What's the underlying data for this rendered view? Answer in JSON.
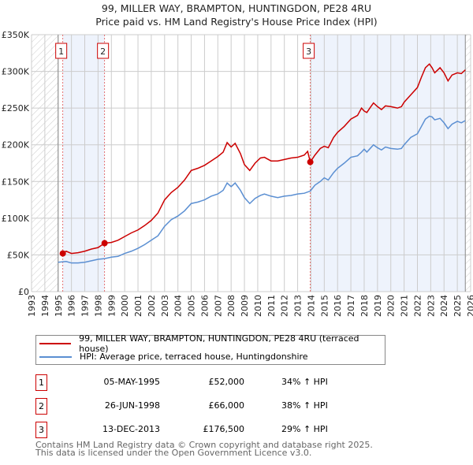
{
  "chart_data": {
    "type": "line",
    "title": "99, MILLER WAY, BRAMPTON, HUNTINGDON, PE28 4RU",
    "subtitle": "Price paid vs. HM Land Registry's House Price Index (HPI)",
    "xlim": [
      1993,
      2026
    ],
    "ylim": [
      0,
      350000
    ],
    "x_ticks": [
      "1993",
      "1994",
      "1995",
      "1996",
      "1997",
      "1998",
      "1999",
      "2000",
      "2001",
      "2002",
      "2003",
      "2004",
      "2005",
      "2006",
      "2007",
      "2008",
      "2009",
      "2010",
      "2011",
      "2012",
      "2013",
      "2014",
      "2015",
      "2016",
      "2017",
      "2018",
      "2019",
      "2020",
      "2021",
      "2022",
      "2023",
      "2024",
      "2025",
      "2026"
    ],
    "y_ticks": [
      {
        "v": 0,
        "label": "£0"
      },
      {
        "v": 50000,
        "label": "£50K"
      },
      {
        "v": 100000,
        "label": "£100K"
      },
      {
        "v": 150000,
        "label": "£150K"
      },
      {
        "v": 200000,
        "label": "£200K"
      },
      {
        "v": 250000,
        "label": "£250K"
      },
      {
        "v": 300000,
        "label": "£300K"
      },
      {
        "v": 350000,
        "label": "£350K"
      }
    ],
    "grid": true,
    "series": [
      {
        "name": "99, MILLER WAY, BRAMPTON, HUNTINGDON, PE28 4RU (terraced house)",
        "color": "#cc0000",
        "x": [
          1995.35,
          1995.6,
          1996,
          1996.5,
          1997,
          1997.5,
          1998,
          1998.49,
          1999,
          1999.5,
          2000,
          2000.5,
          2001,
          2001.5,
          2002,
          2002.5,
          2003,
          2003.5,
          2004,
          2004.5,
          2005,
          2005.5,
          2006,
          2006.5,
          2007,
          2007.4,
          2007.7,
          2008,
          2008.3,
          2008.7,
          2009,
          2009.4,
          2009.8,
          2010.2,
          2010.5,
          2011,
          2011.5,
          2012,
          2012.5,
          2013,
          2013.5,
          2013.75,
          2013.95,
          2014.3,
          2014.7,
          2015,
          2015.3,
          2015.7,
          2016,
          2016.5,
          2017,
          2017.5,
          2017.8,
          2018,
          2018.2,
          2018.5,
          2018.7,
          2019,
          2019.3,
          2019.6,
          2020,
          2020.5,
          2020.8,
          2021,
          2021.5,
          2022,
          2022.3,
          2022.6,
          2022.9,
          2023.1,
          2023.3,
          2023.7,
          2024,
          2024.3,
          2024.6,
          2025,
          2025.3,
          2025.6
        ],
        "y": [
          52000,
          55000,
          52000,
          53000,
          55000,
          58000,
          60000,
          66000,
          67000,
          70000,
          75000,
          80000,
          84000,
          90000,
          97000,
          107000,
          125000,
          135000,
          142000,
          152000,
          165000,
          168000,
          172000,
          178000,
          184000,
          190000,
          203000,
          197000,
          202000,
          188000,
          173000,
          165000,
          175000,
          182000,
          183000,
          178000,
          178000,
          180000,
          182000,
          183000,
          186000,
          191000,
          176500,
          186000,
          195000,
          198000,
          196000,
          210000,
          217000,
          225000,
          235000,
          240000,
          250000,
          246000,
          244000,
          252000,
          257000,
          252000,
          248000,
          253000,
          252000,
          250000,
          252000,
          258000,
          268000,
          278000,
          292000,
          305000,
          310000,
          305000,
          298000,
          305000,
          298000,
          287000,
          295000,
          298000,
          297000,
          302000
        ]
      },
      {
        "name": "HPI: Average price, terraced house, Huntingdonshire",
        "color": "#5b8fd2",
        "x": [
          1995,
          1995.6,
          1996,
          1996.5,
          1997,
          1997.5,
          1998,
          1998.5,
          1999,
          1999.5,
          2000,
          2000.5,
          2001,
          2001.5,
          2002,
          2002.5,
          2003,
          2003.5,
          2004,
          2004.5,
          2005,
          2005.5,
          2006,
          2006.5,
          2007,
          2007.4,
          2007.7,
          2008,
          2008.3,
          2008.7,
          2009,
          2009.4,
          2009.8,
          2010.2,
          2010.5,
          2011,
          2011.5,
          2012,
          2012.5,
          2013,
          2013.5,
          2013.95,
          2014.3,
          2014.7,
          2015,
          2015.3,
          2015.7,
          2016,
          2016.5,
          2017,
          2017.5,
          2017.8,
          2018,
          2018.2,
          2018.5,
          2018.7,
          2019,
          2019.3,
          2019.6,
          2020,
          2020.5,
          2020.8,
          2021,
          2021.5,
          2022,
          2022.3,
          2022.6,
          2022.9,
          2023.1,
          2023.3,
          2023.7,
          2024,
          2024.3,
          2024.6,
          2025,
          2025.3,
          2025.6
        ],
        "y": [
          40000,
          41000,
          39000,
          39000,
          40000,
          42000,
          44000,
          45000,
          47000,
          48000,
          52000,
          55000,
          59000,
          64000,
          70000,
          76000,
          89000,
          98000,
          103000,
          110000,
          120000,
          122000,
          125000,
          130000,
          133000,
          138000,
          148000,
          143000,
          148000,
          138000,
          128000,
          120000,
          127000,
          131000,
          133000,
          130000,
          128000,
          130000,
          131000,
          133000,
          134000,
          137000,
          145000,
          150000,
          155000,
          152000,
          162000,
          168000,
          175000,
          183000,
          185000,
          190000,
          194000,
          190000,
          196000,
          200000,
          196000,
          193000,
          197000,
          195000,
          194000,
          195000,
          200000,
          210000,
          215000,
          225000,
          235000,
          239000,
          238000,
          234000,
          236000,
          230000,
          222000,
          228000,
          232000,
          230000,
          233000
        ]
      }
    ],
    "sales": [
      {
        "label": "1",
        "x": 1995.35,
        "y": 52000
      },
      {
        "label": "2",
        "x": 1998.49,
        "y": 66000
      },
      {
        "label": "3",
        "x": 2013.95,
        "y": 176500
      }
    ],
    "legend_placement": "below"
  },
  "table": [
    {
      "num": "1",
      "date": "05-MAY-1995",
      "price": "£52,000",
      "hpi": "34% ↑ HPI"
    },
    {
      "num": "2",
      "date": "26-JUN-1998",
      "price": "£66,000",
      "hpi": "38% ↑ HPI"
    },
    {
      "num": "3",
      "date": "13-DEC-2013",
      "price": "£176,500",
      "hpi": "29% ↑ HPI"
    }
  ],
  "footer": {
    "line1": "Contains HM Land Registry data © Crown copyright and database right 2025.",
    "line2": "This data is licensed under the Open Government Licence v3.0."
  }
}
